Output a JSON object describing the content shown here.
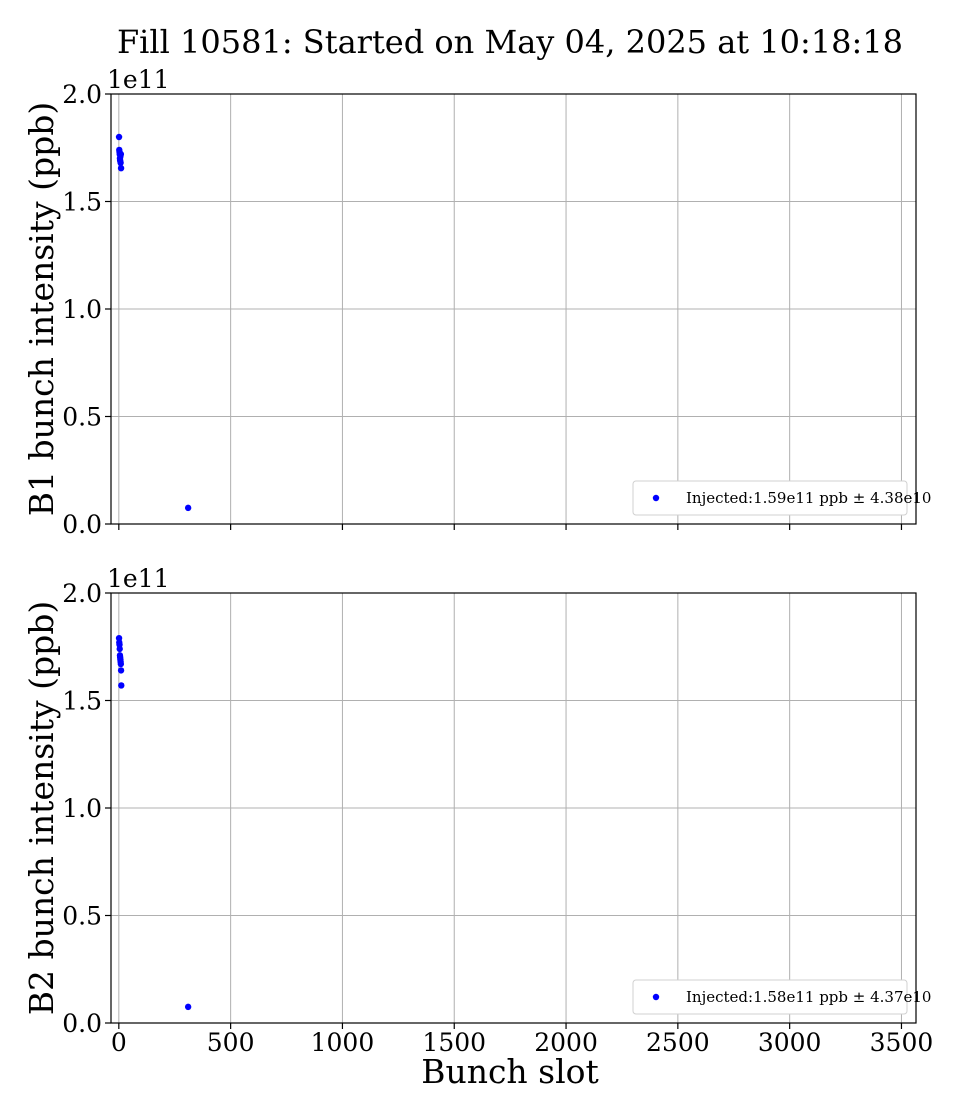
{
  "title": "Fill 10581: Started on May 04, 2025 at 10:18:18",
  "xlabel": "Bunch slot",
  "colors": {
    "points": "#0000ff",
    "grid": "#b0b0b0"
  },
  "chart_data": [
    {
      "type": "scatter",
      "title": "",
      "ylabel": "B1 bunch intensity (ppb)",
      "xlabel": "",
      "y_offset_label": "1e11",
      "xlim": [
        -35,
        3565
      ],
      "ylim": [
        0,
        2.0
      ],
      "xticks": [
        0,
        500,
        1000,
        1500,
        2000,
        2500,
        3000,
        3500
      ],
      "xtick_labels": [],
      "yticks": [
        0.0,
        0.5,
        1.0,
        1.5,
        2.0
      ],
      "ytick_labels": [
        "0.0",
        "0.5",
        "1.0",
        "1.5",
        "2.0"
      ],
      "grid": true,
      "legend_position": "lower right",
      "series": [
        {
          "name": "Injected:1.59e11 ppb ± 4.38e10",
          "color": "#0000ff",
          "x": [
            1,
            2,
            3,
            4,
            5,
            6,
            7,
            8,
            9,
            10,
            310
          ],
          "y": [
            1.8,
            1.74,
            1.73,
            1.72,
            1.7,
            1.69,
            1.71,
            1.68,
            1.72,
            1.655,
            0.075
          ]
        }
      ]
    },
    {
      "type": "scatter",
      "title": "",
      "ylabel": "B2 bunch intensity (ppb)",
      "xlabel": "Bunch slot",
      "y_offset_label": "1e11",
      "xlim": [
        -35,
        3565
      ],
      "ylim": [
        0,
        2.0
      ],
      "xticks": [
        0,
        500,
        1000,
        1500,
        2000,
        2500,
        3000,
        3500
      ],
      "xtick_labels": [
        "0",
        "500",
        "1000",
        "1500",
        "2000",
        "2500",
        "3000",
        "3500"
      ],
      "yticks": [
        0.0,
        0.5,
        1.0,
        1.5,
        2.0
      ],
      "ytick_labels": [
        "0.0",
        "0.5",
        "1.0",
        "1.5",
        "2.0"
      ],
      "grid": true,
      "legend_position": "lower right",
      "series": [
        {
          "name": "Injected:1.58e11 ppb ± 4.37e10",
          "color": "#0000ff",
          "x": [
            1,
            2,
            3,
            4,
            5,
            6,
            7,
            8,
            9,
            10,
            11,
            310
          ],
          "y": [
            1.79,
            1.77,
            1.76,
            1.74,
            1.71,
            1.7,
            1.69,
            1.68,
            1.67,
            1.64,
            1.57,
            0.075
          ]
        }
      ]
    }
  ]
}
